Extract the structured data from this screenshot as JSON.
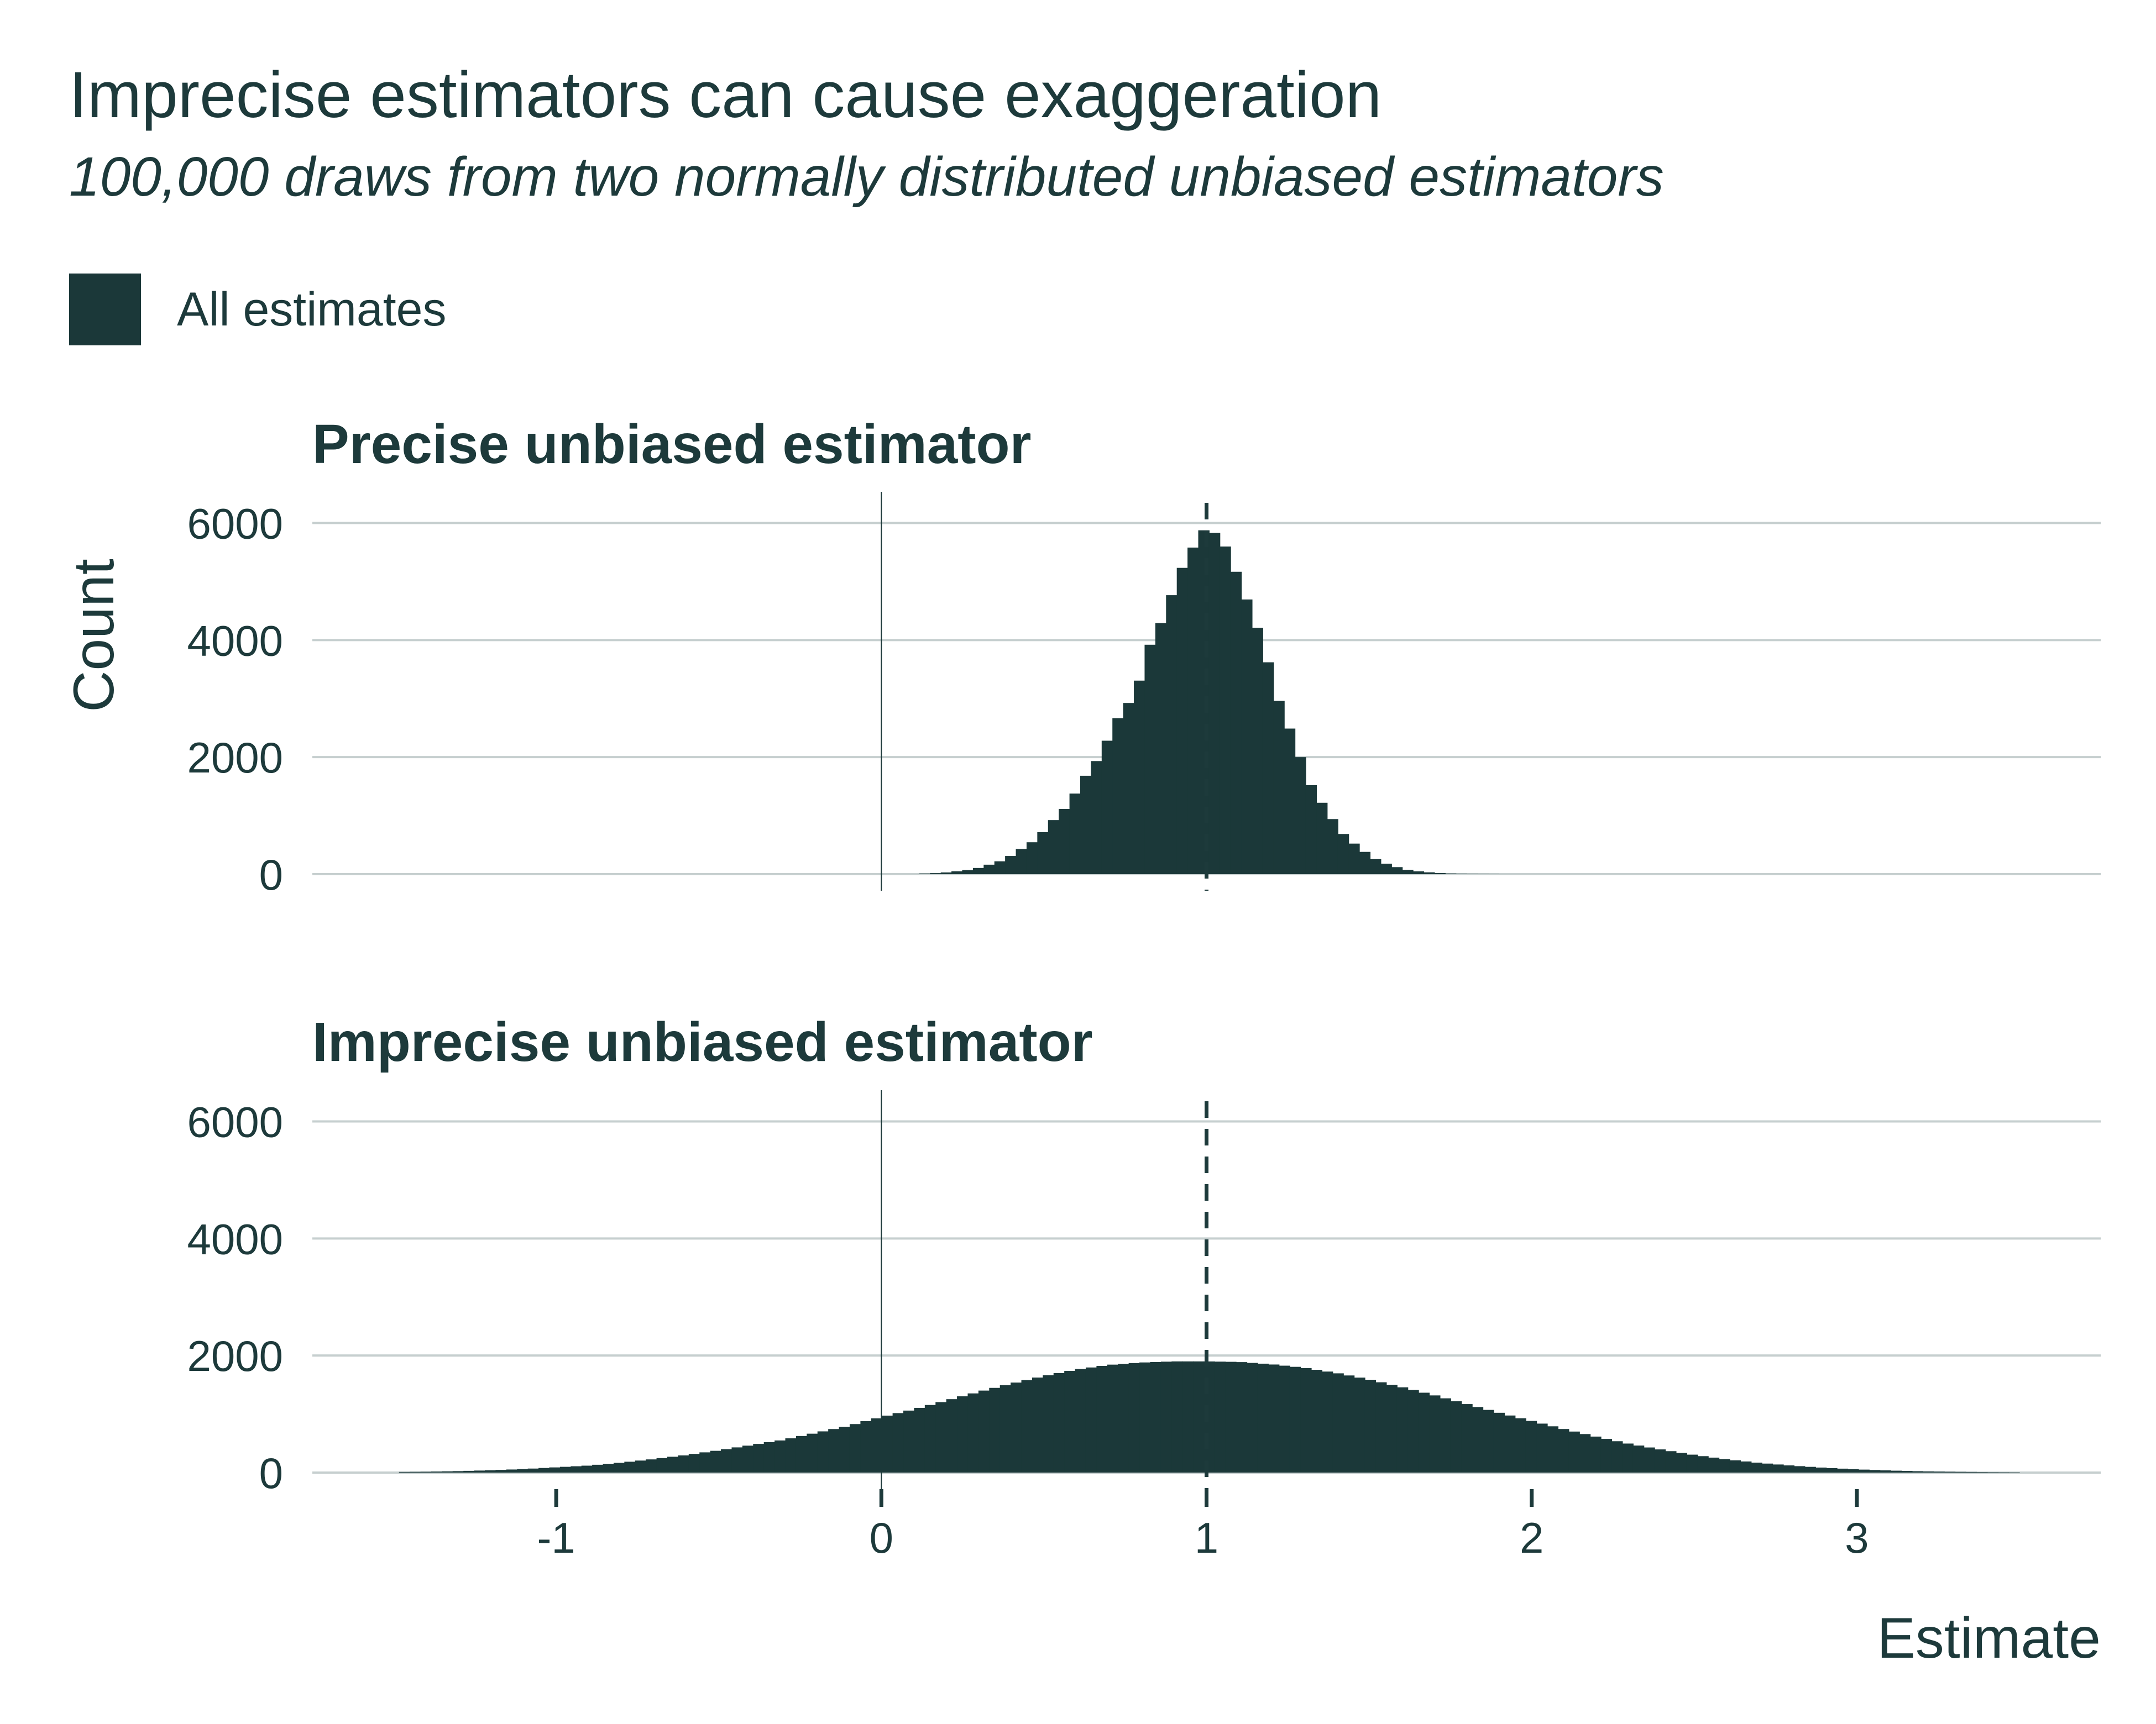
{
  "chart_data": [
    {
      "type": "bar",
      "title": "Precise unbiased estimator",
      "ylabel": "Count",
      "xlim": [
        -1.75,
        3.75
      ],
      "ylim": [
        0,
        6250
      ],
      "yticks": [
        0,
        2000,
        4000,
        6000
      ],
      "bin_width": 0.033,
      "dashed_reference_line_x": 1,
      "zero_line_x": 0,
      "x": [
        0.1,
        0.13,
        0.17,
        0.2,
        0.23,
        0.27,
        0.3,
        0.33,
        0.37,
        0.4,
        0.43,
        0.47,
        0.5,
        0.53,
        0.57,
        0.6,
        0.63,
        0.67,
        0.7,
        0.73,
        0.77,
        0.8,
        0.83,
        0.87,
        0.9,
        0.93,
        0.97,
        1.0,
        1.03,
        1.07,
        1.1,
        1.13,
        1.17,
        1.2,
        1.23,
        1.27,
        1.3,
        1.33,
        1.37,
        1.4,
        1.43,
        1.47,
        1.5,
        1.53,
        1.57,
        1.6,
        1.63,
        1.67,
        1.7,
        1.73,
        1.77,
        1.8,
        1.83,
        1.87,
        1.9
      ],
      "values": [
        5,
        10,
        18,
        30,
        48,
        72,
        108,
        160,
        230,
        320,
        430,
        570,
        740,
        930,
        1160,
        1420,
        1700,
        2000,
        2350,
        2700,
        3000,
        3400,
        4000,
        4400,
        4900,
        5300,
        5700,
        5950,
        5800,
        5500,
        5000,
        4600,
        4000,
        3400,
        2800,
        2300,
        1800,
        1400,
        1100,
        820,
        620,
        450,
        320,
        220,
        145,
        95,
        60,
        38,
        24,
        14,
        8,
        5,
        3,
        2,
        1
      ]
    },
    {
      "type": "bar",
      "title": "Imprecise unbiased estimator",
      "xlabel": "Estimate",
      "ylabel": "Count",
      "xlim": [
        -1.75,
        3.75
      ],
      "ylim": [
        0,
        6250
      ],
      "xticks": [
        -1,
        0,
        1,
        2,
        3
      ],
      "yticks": [
        0,
        2000,
        4000,
        6000
      ],
      "bin_width": 0.033,
      "dashed_reference_line_x": 1,
      "zero_line_x": 0,
      "x": [
        -1.5,
        -1.4,
        -1.3,
        -1.2,
        -1.1,
        -1.0,
        -0.9,
        -0.8,
        -0.7,
        -0.6,
        -0.5,
        -0.4,
        -0.3,
        -0.2,
        -0.1,
        0.0,
        0.1,
        0.2,
        0.3,
        0.4,
        0.5,
        0.6,
        0.7,
        0.8,
        0.9,
        1.0,
        1.1,
        1.2,
        1.3,
        1.4,
        1.5,
        1.6,
        1.7,
        1.8,
        1.9,
        2.0,
        2.1,
        2.2,
        2.3,
        2.4,
        2.5,
        2.6,
        2.7,
        2.8,
        2.9,
        3.0,
        3.1,
        3.2,
        3.3,
        3.4,
        3.5
      ],
      "values": [
        10,
        15,
        25,
        40,
        60,
        90,
        120,
        170,
        230,
        300,
        380,
        470,
        560,
        680,
        800,
        950,
        1080,
        1230,
        1380,
        1520,
        1650,
        1760,
        1840,
        1880,
        1900,
        1900,
        1890,
        1850,
        1790,
        1700,
        1590,
        1460,
        1320,
        1170,
        1020,
        880,
        740,
        610,
        490,
        390,
        300,
        225,
        165,
        118,
        82,
        55,
        35,
        22,
        14,
        8,
        5
      ]
    }
  ]
}
